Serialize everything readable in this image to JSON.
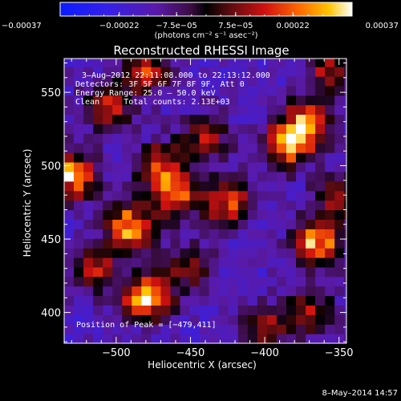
{
  "chart_data": {
    "type": "heatmap",
    "title": "Reconstructed RHESSI Image",
    "xlabel": "Heliocentric X (arcsec)",
    "ylabel": "Heliocentric Y (arcsec)",
    "xlim": [
      -535,
      -345
    ],
    "ylim": [
      379,
      573
    ],
    "x_ticks": [
      -500,
      -450,
      -400,
      -350
    ],
    "y_ticks": [
      400,
      450,
      500,
      550
    ],
    "x_tick_labels": [
      "−500",
      "−450",
      "−400",
      "−350"
    ],
    "y_tick_labels": [
      "400",
      "450",
      "500",
      "550"
    ],
    "colorbar": {
      "range": [
        -0.00037,
        0.00037
      ],
      "ticks": [
        -0.00037,
        -0.00022,
        -7.5e-05,
        7.5e-05,
        0.00022,
        0.00037
      ],
      "tick_labels": [
        "−0.00037",
        "−0.00022",
        "−7.5e−05",
        "7.5e−05",
        "0.00022",
        "0.00037"
      ],
      "unit_label": "(photons cm⁻² s⁻¹ asec⁻²)"
    },
    "annotations": {
      "time_range": "3–Aug–2012 22:11:08.000 to 22:13:12.000",
      "detectors": "Detectors: 3F 5F 6F 7F 8F 9F, Att 0",
      "energy_range": "Energy Range: 25.0 – 50.0 keV",
      "method_counts": "Clean     Total counts: 2.13E+03",
      "peak_position": "Position of Peak = [−479,411]"
    },
    "hot_spots": [
      {
        "x": -479,
        "y": 411,
        "value": 0.00037
      },
      {
        "x": -365,
        "y": 448,
        "value": 0.0003
      },
      {
        "x": -530,
        "y": 493,
        "value": 0.00032
      },
      {
        "x": -490,
        "y": 458,
        "value": 0.00028
      },
      {
        "x": -425,
        "y": 475,
        "value": 0.00022
      },
      {
        "x": -460,
        "y": 480,
        "value": 0.0002
      },
      {
        "x": -385,
        "y": 515,
        "value": 0.0003
      },
      {
        "x": -370,
        "y": 530,
        "value": 0.00024
      },
      {
        "x": -505,
        "y": 540,
        "value": 0.0002
      },
      {
        "x": -480,
        "y": 565,
        "value": 0.00016
      },
      {
        "x": -470,
        "y": 500,
        "value": 0.00018
      },
      {
        "x": -355,
        "y": 565,
        "value": 0.00012
      },
      {
        "x": -370,
        "y": 400,
        "value": 0.0001
      },
      {
        "x": -400,
        "y": 390,
        "value": 0.00012
      },
      {
        "x": -440,
        "y": 520,
        "value": 0.0001
      },
      {
        "x": -515,
        "y": 430,
        "value": 0.00014
      },
      {
        "x": -350,
        "y": 478,
        "value": 0.00012
      },
      {
        "x": -450,
        "y": 430,
        "value": 6e-05
      }
    ]
  },
  "footer": {
    "date": "8–May–2014 14:57"
  }
}
